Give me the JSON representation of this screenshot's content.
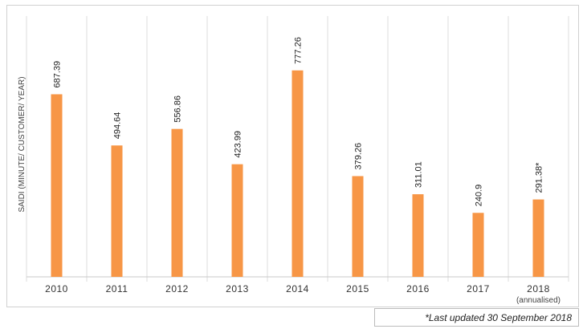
{
  "chart_data": {
    "type": "bar",
    "y_label": "SAIDI (MINUTE/ CUSTOMER/ YEAR)",
    "categories": [
      "2010",
      "2011",
      "2012",
      "2013",
      "2014",
      "2015",
      "2016",
      "2017",
      "2018"
    ],
    "category_sublabels": [
      null,
      null,
      null,
      null,
      null,
      null,
      null,
      null,
      "(annualised)"
    ],
    "values": [
      687.39,
      494.64,
      556.86,
      423.99,
      777.26,
      379.26,
      311.01,
      240.9,
      291.38
    ],
    "value_labels": [
      "687.39",
      "494.64",
      "556.86",
      "423.99",
      "777.26",
      "379.26",
      "311.01",
      "240.9",
      "291.38*"
    ],
    "color": "#f79646",
    "ylim": [
      0,
      1000
    ],
    "footnote": "*Last updated 30 September 2018"
  }
}
